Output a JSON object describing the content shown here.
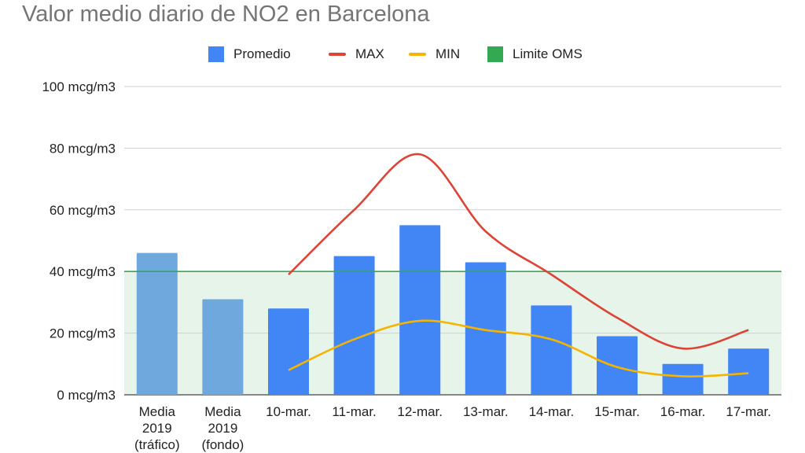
{
  "chart_data": {
    "type": "bar",
    "title": "Valor medio diario de NO2 en Barcelona",
    "categories": [
      [
        "Media",
        "2019",
        "(tráfico)"
      ],
      [
        "Media",
        "2019",
        "(fondo)"
      ],
      [
        "10-mar."
      ],
      [
        "11-mar."
      ],
      [
        "12-mar."
      ],
      [
        "13-mar."
      ],
      [
        "14-mar."
      ],
      [
        "15-mar."
      ],
      [
        "16-mar."
      ],
      [
        "17-mar."
      ]
    ],
    "y_ticks": [
      "0 mcg/m3",
      "20 mcg/m3",
      "40 mcg/m3",
      "60 mcg/m3",
      "80 mcg/m3",
      "100 mcg/m3"
    ],
    "ylim": [
      0,
      100
    ],
    "grid": true,
    "legend_position": "top",
    "series": [
      {
        "name": "Promedio",
        "kind": "bar",
        "color": "#4285f4",
        "highlight_color": "#6fa8dc",
        "values": [
          46,
          31,
          28,
          45,
          55,
          43,
          29,
          19,
          10,
          15
        ]
      },
      {
        "name": "MAX",
        "kind": "line",
        "color": "#db4437",
        "values": [
          null,
          null,
          39,
          60,
          78,
          53,
          39,
          25,
          15,
          21
        ]
      },
      {
        "name": "MIN",
        "kind": "line",
        "color": "#f4b400",
        "values": [
          null,
          null,
          8,
          18,
          24,
          21,
          18,
          9,
          6,
          7
        ]
      },
      {
        "name": "Limite OMS",
        "kind": "area",
        "color": "#34a853",
        "value": 40
      }
    ]
  }
}
